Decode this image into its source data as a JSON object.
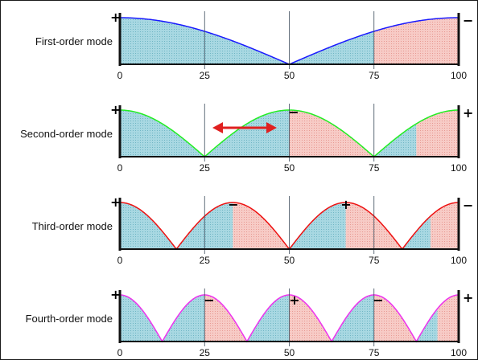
{
  "panels": [
    {
      "label": "First-order mode",
      "order": 1,
      "color": "#1a1aff",
      "axis_ticks": [
        "0",
        "25",
        "50",
        "75",
        "100"
      ],
      "left_sign": "+",
      "right_sign": "−",
      "lobe_signs": []
    },
    {
      "label": "Second-order mode",
      "order": 2,
      "color": "#22ee22",
      "axis_ticks": [
        "0",
        "25",
        "50",
        "75",
        "100"
      ],
      "left_sign": "+",
      "right_sign": "+",
      "lobe_signs": [
        "−"
      ],
      "arrow": "double-headed-arrow",
      "arrow_color": "#e02020"
    },
    {
      "label": "Third-order mode",
      "order": 3,
      "color": "#ee1111",
      "axis_ticks": [
        "0",
        "25",
        "50",
        "75",
        "100"
      ],
      "left_sign": "+",
      "right_sign": "−",
      "lobe_signs": [
        "−",
        "+"
      ]
    },
    {
      "label": "Fourth-order mode",
      "order": 4,
      "color": "#ee33ee",
      "axis_ticks": [
        "0",
        "25",
        "50",
        "75",
        "100"
      ],
      "left_sign": "+",
      "right_sign": "+",
      "lobe_signs": [
        "−",
        "+",
        "−"
      ]
    }
  ],
  "fills": {
    "positive": "#9ed2dc",
    "negative": "#f5c0bc"
  },
  "frame": {
    "border_color": "#1a1a1a"
  }
}
